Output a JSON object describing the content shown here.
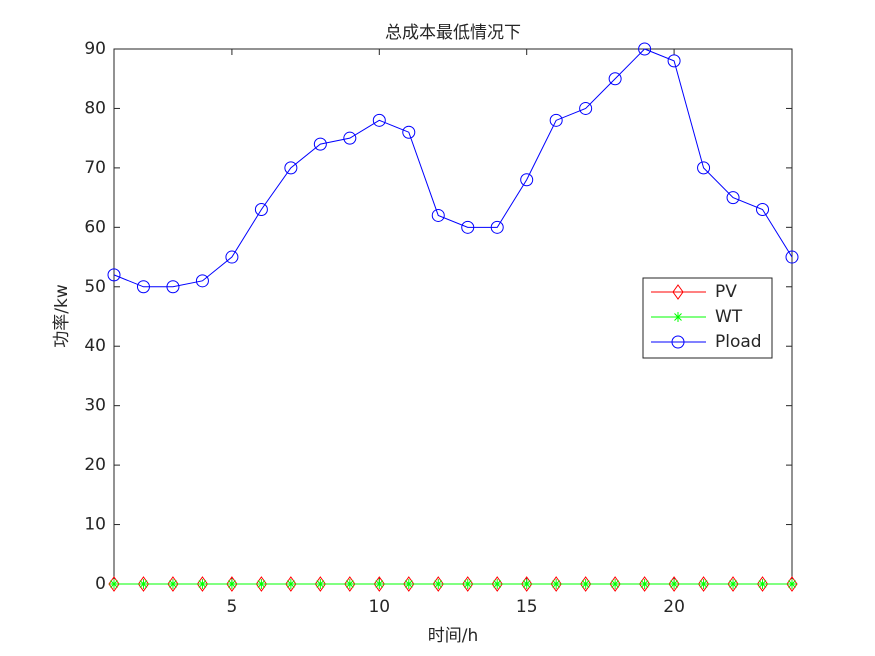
{
  "chart_data": {
    "type": "line",
    "title": "总成本最低情况下",
    "x_label": "时间/h",
    "y_label": "功率/kw",
    "x": [
      1,
      2,
      3,
      4,
      5,
      6,
      7,
      8,
      9,
      10,
      11,
      12,
      13,
      14,
      15,
      16,
      17,
      18,
      19,
      20,
      21,
      22,
      23,
      24
    ],
    "series": [
      {
        "name": "PV",
        "color": "#ff0000",
        "marker": "diamond",
        "values": [
          0,
          0,
          0,
          0,
          0,
          0,
          0,
          0,
          0,
          0,
          0,
          0,
          0,
          0,
          0,
          0,
          0,
          0,
          0,
          0,
          0,
          0,
          0,
          0
        ]
      },
      {
        "name": "WT",
        "color": "#00ff00",
        "marker": "asterisk",
        "values": [
          0,
          0,
          0,
          0,
          0,
          0,
          0,
          0,
          0,
          0,
          0,
          0,
          0,
          0,
          0,
          0,
          0,
          0,
          0,
          0,
          0,
          0,
          0,
          0
        ]
      },
      {
        "name": "Pload",
        "color": "#0000ff",
        "marker": "circle",
        "values": [
          52,
          50,
          50,
          51,
          55,
          63,
          70,
          74,
          75,
          78,
          76,
          62,
          60,
          60,
          68,
          78,
          80,
          85,
          90,
          88,
          70,
          65,
          63,
          55
        ]
      }
    ],
    "xlim": [
      1,
      24
    ],
    "ylim": [
      0,
      90
    ],
    "xticks": [
      5,
      10,
      15,
      20
    ],
    "yticks": [
      0,
      10,
      20,
      30,
      40,
      50,
      60,
      70,
      80,
      90
    ],
    "legend": "right"
  }
}
